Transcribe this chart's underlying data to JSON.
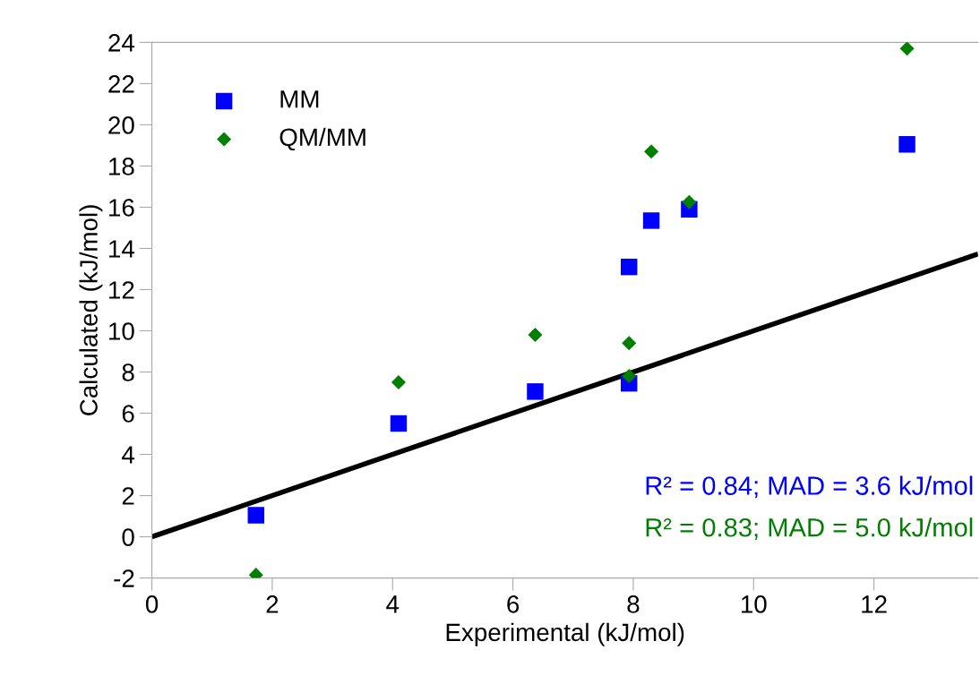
{
  "chart_data": {
    "type": "scatter",
    "xlabel": "Experimental (kJ/mol)",
    "ylabel": "Calculated (kJ/mol)",
    "xlim": [
      0,
      13.73
    ],
    "ylim": [
      -2,
      24
    ],
    "xticks": [
      0,
      2,
      4,
      6,
      8,
      10,
      12
    ],
    "yticks": [
      -2,
      0,
      2,
      4,
      6,
      8,
      10,
      12,
      14,
      16,
      18,
      20,
      22,
      24
    ],
    "grid": false,
    "legend": "top left",
    "series": [
      {
        "name": "MM",
        "color": "#0000ff",
        "marker": "square",
        "x": [
          1.73,
          4.1,
          6.37,
          7.93,
          7.93,
          8.3,
          8.93,
          12.55
        ],
        "values": [
          1.05,
          5.5,
          7.05,
          7.45,
          13.1,
          15.35,
          15.9,
          19.05
        ]
      },
      {
        "name": "QM/MM",
        "color": "#007f00",
        "marker": "diamond",
        "x": [
          1.73,
          4.1,
          6.37,
          7.93,
          7.93,
          8.3,
          8.93,
          12.55
        ],
        "values": [
          -1.85,
          7.5,
          9.8,
          7.8,
          9.4,
          18.7,
          16.25,
          23.7
        ]
      },
      {
        "type": "line",
        "color": "#000000",
        "marker": "none",
        "x": [
          0,
          13.73
        ],
        "values": [
          0,
          13.73
        ]
      }
    ],
    "annotations": [
      "R² = 0.84; MAD = 3.6 kJ/mol",
      "R² = 0.83; MAD = 5.0 kJ/mol"
    ]
  }
}
